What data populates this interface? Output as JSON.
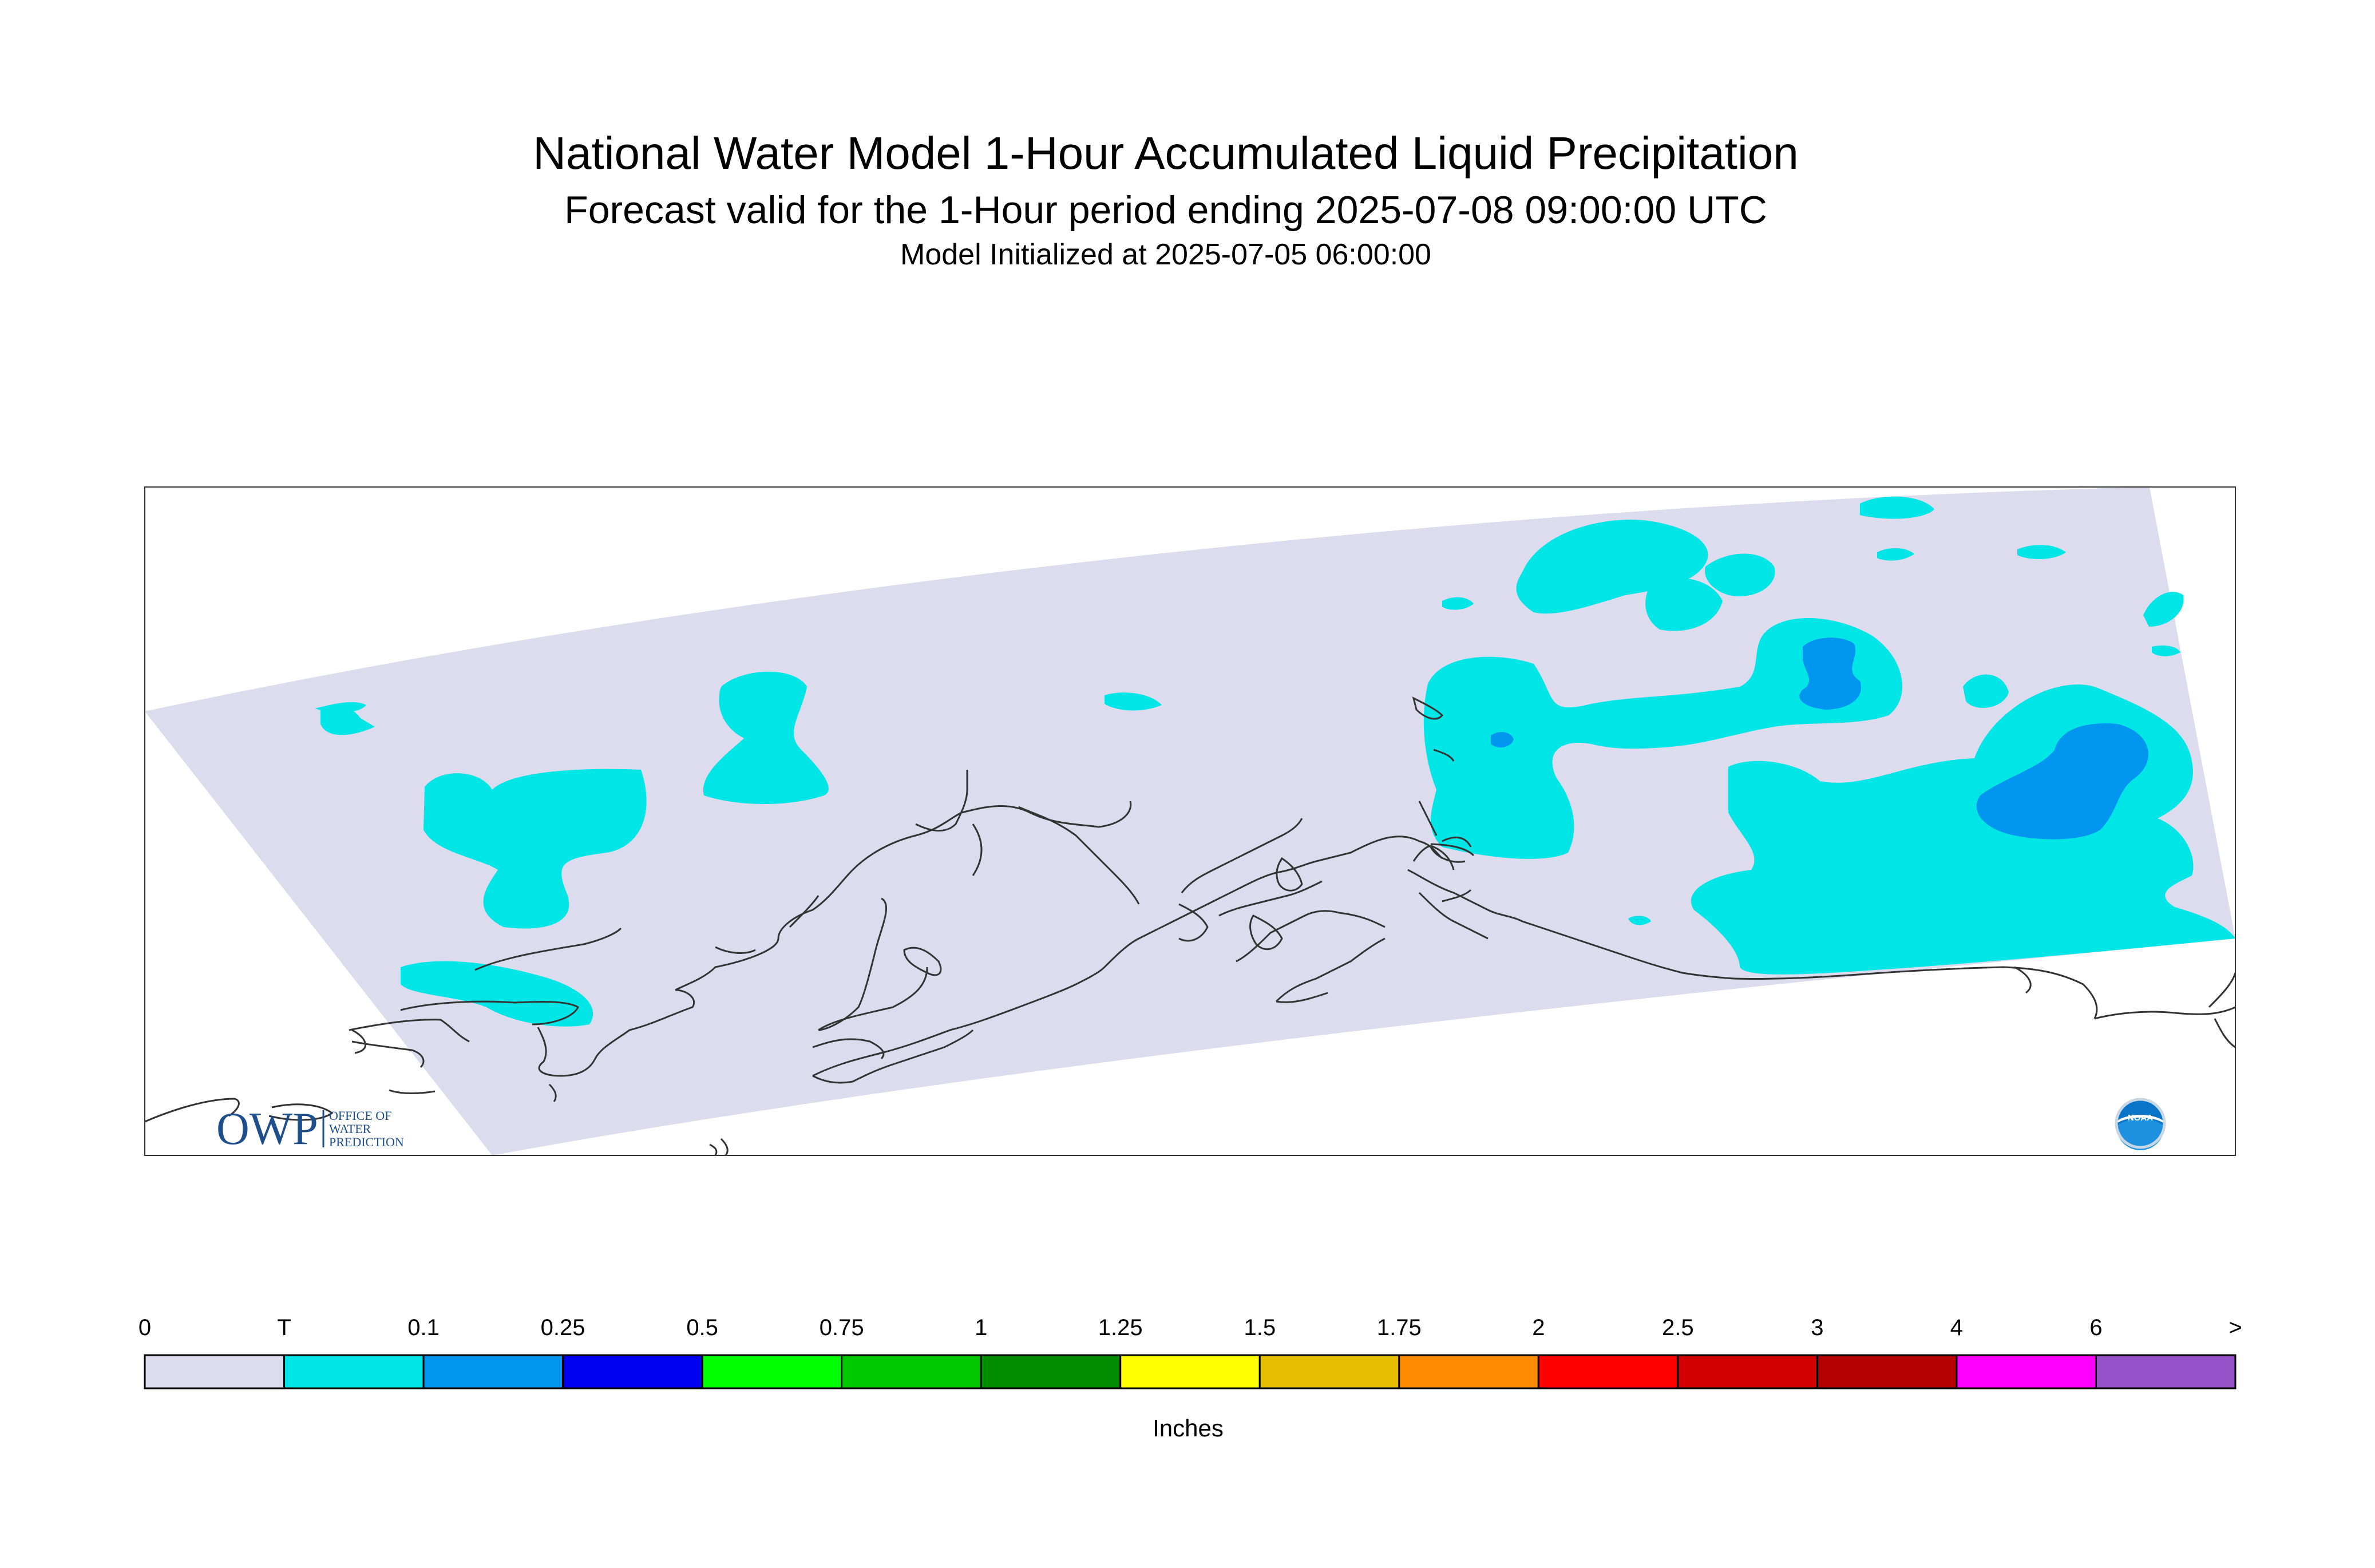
{
  "header": {
    "title": "National Water Model 1-Hour Accumulated Liquid Precipitation",
    "subtitle": "Forecast valid for the 1-Hour period ending 2025-07-08 09:00:00 UTC",
    "init": "Model Initialized at 2025-07-05 06:00:00"
  },
  "logos": {
    "owp": {
      "mark": "OWP",
      "line1": "OFFICE OF",
      "line2": "WATER",
      "line3": "PREDICTION"
    },
    "noaa": {
      "text": "NOAA"
    }
  },
  "legend": {
    "unit": "Inches",
    "labels": [
      "0",
      "T",
      "0.1",
      "0.25",
      "0.5",
      "0.75",
      "1",
      "1.25",
      "1.5",
      "1.75",
      "2",
      "2.5",
      "3",
      "4",
      "6",
      ">"
    ],
    "colors": [
      "#dcdcee",
      "#00e5e5",
      "#0096f0",
      "#0000f0",
      "#00ff00",
      "#00c800",
      "#008c00",
      "#ffff00",
      "#e6bf00",
      "#ff8c00",
      "#ff0000",
      "#d20000",
      "#b40000",
      "#ff00ff",
      "#9650c8"
    ]
  },
  "colors": {
    "domain": "#dcdcee",
    "trace": "#00e5e5",
    "light": "#0096f0",
    "coast": "#333333"
  }
}
